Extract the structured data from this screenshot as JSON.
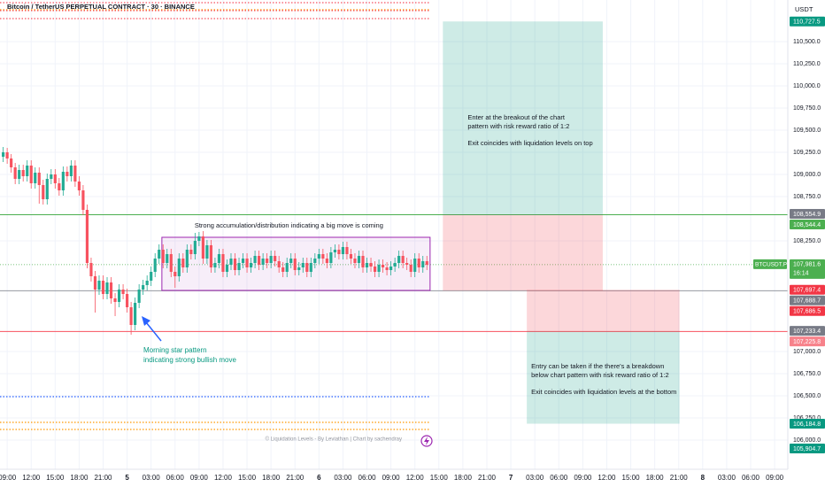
{
  "chart_data": {
    "type": "candlestick",
    "title": "Bitcoin / TetherUS PERPETUAL CONTRACT · 30 · BINANCE",
    "currency": "USDT",
    "up_color": "#22ab94",
    "down_color": "#f7525f",
    "grid": true,
    "xlim": [
      -0.8,
      196.3
    ],
    "ylim": [
      105670,
      110970
    ],
    "xticks": [
      {
        "value": 1,
        "label": "09:00"
      },
      {
        "value": 7,
        "label": "12:00"
      },
      {
        "value": 13,
        "label": "15:00"
      },
      {
        "value": 19,
        "label": "18:00"
      },
      {
        "value": 25,
        "label": "21:00"
      },
      {
        "value": 31,
        "label": "5"
      },
      {
        "value": 37,
        "label": "03:00"
      },
      {
        "value": 43,
        "label": "06:00"
      },
      {
        "value": 49,
        "label": "09:00"
      },
      {
        "value": 55,
        "label": "12:00"
      },
      {
        "value": 61,
        "label": "15:00"
      },
      {
        "value": 67,
        "label": "18:00"
      },
      {
        "value": 73,
        "label": "21:00"
      },
      {
        "value": 79,
        "label": "6"
      },
      {
        "value": 85,
        "label": "03:00"
      },
      {
        "value": 91,
        "label": "06:00"
      },
      {
        "value": 97,
        "label": "09:00"
      },
      {
        "value": 103,
        "label": "12:00"
      },
      {
        "value": 109,
        "label": "15:00"
      },
      {
        "value": 115,
        "label": "18:00"
      },
      {
        "value": 121,
        "label": "21:00"
      },
      {
        "value": 127,
        "label": "7"
      },
      {
        "value": 133,
        "label": "03:00"
      },
      {
        "value": 139,
        "label": "06:00"
      },
      {
        "value": 145,
        "label": "09:00"
      },
      {
        "value": 151,
        "label": "12:00"
      },
      {
        "value": 157,
        "label": "15:00"
      },
      {
        "value": 163,
        "label": "18:00"
      },
      {
        "value": 169,
        "label": "21:00"
      },
      {
        "value": 175,
        "label": "8"
      },
      {
        "value": 181,
        "label": "03:00"
      },
      {
        "value": 187,
        "label": "06:00"
      },
      {
        "value": 193,
        "label": "09:00"
      }
    ],
    "yticks": [
      {
        "value": 110500,
        "label": "110,500.0"
      },
      {
        "value": 110250,
        "label": "110,250.0"
      },
      {
        "value": 110000,
        "label": "110,000.0"
      },
      {
        "value": 109750,
        "label": "109,750.0"
      },
      {
        "value": 109500,
        "label": "109,500.0"
      },
      {
        "value": 109250,
        "label": "109,250.0"
      },
      {
        "value": 109000,
        "label": "109,000.0"
      },
      {
        "value": 108750,
        "label": "108,750.0"
      },
      {
        "value": 108250,
        "label": "108,250.0"
      },
      {
        "value": 107000,
        "label": "107,000.0"
      },
      {
        "value": 106750,
        "label": "106,750.0"
      },
      {
        "value": 106500,
        "label": "106,500.0"
      },
      {
        "value": 106250,
        "label": "106,250.0"
      },
      {
        "value": 106000,
        "label": "106,000.0"
      }
    ],
    "candles": [
      [
        109200,
        109310,
        109140,
        109250
      ],
      [
        109250,
        109300,
        109120,
        109180
      ],
      [
        109180,
        109230,
        109020,
        109080
      ],
      [
        109080,
        109130,
        108890,
        108950
      ],
      [
        108950,
        109110,
        108890,
        109050
      ],
      [
        109050,
        109110,
        108920,
        108980
      ],
      [
        108980,
        109160,
        108920,
        109100
      ],
      [
        109100,
        109160,
        108840,
        108900
      ],
      [
        108900,
        109080,
        108840,
        109020
      ],
      [
        109020,
        109080,
        108670,
        108880
      ],
      [
        108880,
        108940,
        108660,
        108720
      ],
      [
        108720,
        109010,
        108660,
        108950
      ],
      [
        108950,
        109060,
        108890,
        109000
      ],
      [
        109000,
        109060,
        108840,
        108900
      ],
      [
        108900,
        108960,
        108760,
        108820
      ],
      [
        108820,
        109090,
        108760,
        109030
      ],
      [
        109030,
        109090,
        108920,
        108980
      ],
      [
        108980,
        109160,
        108920,
        109100
      ],
      [
        109100,
        109160,
        108860,
        108920
      ],
      [
        108920,
        108980,
        108760,
        108820
      ],
      [
        108820,
        108880,
        108540,
        108600
      ],
      [
        108600,
        108660,
        107940,
        108000
      ],
      [
        108000,
        108060,
        107790,
        107850
      ],
      [
        107850,
        107910,
        107440,
        107700
      ],
      [
        107700,
        107860,
        107640,
        107800
      ],
      [
        107800,
        107860,
        107590,
        107650
      ],
      [
        107650,
        107840,
        107590,
        107780
      ],
      [
        107780,
        107840,
        107540,
        107600
      ],
      [
        107600,
        107660,
        107400,
        107560
      ],
      [
        107560,
        107760,
        107500,
        107700
      ],
      [
        107700,
        107760,
        107590,
        107650
      ],
      [
        107650,
        107710,
        107440,
        107500
      ],
      [
        107500,
        107560,
        107190,
        107300
      ],
      [
        107300,
        107610,
        107240,
        107550
      ],
      [
        107550,
        107760,
        107490,
        107700
      ],
      [
        107700,
        107810,
        107640,
        107750
      ],
      [
        107750,
        107860,
        107690,
        107800
      ],
      [
        107800,
        107960,
        107740,
        107900
      ],
      [
        107900,
        108110,
        107840,
        108050
      ],
      [
        108050,
        108210,
        107990,
        108150
      ],
      [
        108150,
        108210,
        107940,
        108000
      ],
      [
        108000,
        108160,
        107940,
        108100
      ],
      [
        108100,
        108160,
        107840,
        107900
      ],
      [
        107900,
        107960,
        107720,
        107850
      ],
      [
        107850,
        108110,
        107790,
        108050
      ],
      [
        108050,
        108110,
        107890,
        107950
      ],
      [
        107950,
        108210,
        107890,
        108150
      ],
      [
        108150,
        108210,
        108040,
        108100
      ],
      [
        108100,
        108340,
        108040,
        108250
      ],
      [
        108250,
        108350,
        108190,
        108300
      ],
      [
        108300,
        108360,
        107990,
        108050
      ],
      [
        108050,
        108260,
        107990,
        108200
      ],
      [
        108200,
        108260,
        107890,
        107950
      ],
      [
        107950,
        108060,
        107890,
        108000
      ],
      [
        108000,
        108160,
        107940,
        108100
      ],
      [
        108100,
        108160,
        107840,
        107900
      ],
      [
        107900,
        108040,
        107840,
        107980
      ],
      [
        107980,
        108110,
        107920,
        108050
      ],
      [
        108050,
        108110,
        107860,
        107920
      ],
      [
        107920,
        108060,
        107860,
        108000
      ],
      [
        108000,
        108110,
        107940,
        108050
      ],
      [
        108050,
        108110,
        107890,
        107950
      ],
      [
        107950,
        108060,
        107890,
        108000
      ],
      [
        108000,
        108140,
        107940,
        108080
      ],
      [
        108080,
        108140,
        107920,
        107980
      ],
      [
        107980,
        108110,
        107920,
        108050
      ],
      [
        108050,
        108110,
        107940,
        108000
      ],
      [
        108000,
        108140,
        107940,
        108080
      ],
      [
        108080,
        108140,
        107960,
        108020
      ],
      [
        108020,
        108080,
        107890,
        107950
      ],
      [
        107950,
        108010,
        107840,
        107900
      ],
      [
        107900,
        108060,
        107840,
        108000
      ],
      [
        108000,
        108110,
        107940,
        108050
      ],
      [
        108050,
        108110,
        107860,
        107920
      ],
      [
        107920,
        108010,
        107860,
        107950
      ],
      [
        107950,
        108060,
        107890,
        108000
      ],
      [
        108000,
        108060,
        107840,
        107900
      ],
      [
        107900,
        108060,
        107840,
        108000
      ],
      [
        108000,
        108110,
        107940,
        108050
      ],
      [
        108050,
        108160,
        107990,
        108100
      ],
      [
        108100,
        108160,
        107990,
        108050
      ],
      [
        108050,
        108110,
        107940,
        108000
      ],
      [
        108000,
        108180,
        107940,
        108120
      ],
      [
        108120,
        108210,
        108060,
        108150
      ],
      [
        108150,
        108210,
        108040,
        108100
      ],
      [
        108100,
        108240,
        108040,
        108180
      ],
      [
        108180,
        108240,
        108040,
        108100
      ],
      [
        108100,
        108160,
        107990,
        108050
      ],
      [
        108050,
        108110,
        107940,
        108000
      ],
      [
        108000,
        108140,
        107940,
        108080
      ],
      [
        108080,
        108140,
        107890,
        107950
      ],
      [
        107950,
        108060,
        107890,
        108000
      ],
      [
        108000,
        108060,
        107900,
        107960
      ],
      [
        107960,
        108020,
        107840,
        107900
      ],
      [
        107900,
        108040,
        107840,
        107980
      ],
      [
        107980,
        108040,
        107890,
        107950
      ],
      [
        107950,
        108010,
        107860,
        107920
      ],
      [
        107920,
        108020,
        107860,
        107960
      ],
      [
        107960,
        108060,
        107900,
        108000
      ],
      [
        108000,
        108140,
        107940,
        108080
      ],
      [
        108080,
        108140,
        107940,
        108000
      ],
      [
        108000,
        108060,
        107920,
        107980
      ],
      [
        107980,
        108040,
        107840,
        107900
      ],
      [
        107900,
        108110,
        107840,
        108050
      ],
      [
        108050,
        108110,
        107890,
        107950
      ],
      [
        107950,
        108080,
        107890,
        108020
      ],
      [
        108020,
        108080,
        107920,
        107980
      ]
    ],
    "lines": [
      {
        "value": 108544.4,
        "color": "#4caf50"
      },
      {
        "value": 107686.5,
        "color": "#9598a1"
      },
      {
        "value": 107225.8,
        "color": "#f7525f"
      }
    ],
    "liquidation_levels": [
      {
        "value": 110940,
        "color": "#f7525f"
      },
      {
        "value": 110860,
        "color": "#ff9800"
      },
      {
        "value": 110850,
        "color": "#f7525f"
      },
      {
        "value": 110760,
        "color": "#f7525f"
      },
      {
        "value": 106490,
        "color": "#2962ff"
      },
      {
        "value": 106200,
        "color": "#ff9800"
      },
      {
        "value": 106120,
        "color": "#ff9800"
      }
    ],
    "consolidation": {
      "x": [
        39.7,
        106.8
      ],
      "y": [
        107690,
        108290
      ],
      "color": "#9c27b0",
      "text": "Strong accumulation/distribution indicating a big move is coming"
    },
    "positions": [
      {
        "x": [
          110,
          150
        ],
        "entry": 108544.4,
        "target": 110727.5,
        "stop": 107686.5,
        "text": [
          "Enter at the breakout of the chart",
          "pattern with risk reward ratio of 1:2",
          "Exit coincides with liquidation levels on top"
        ]
      },
      {
        "x": [
          131,
          169.2
        ],
        "entry": 107225.8,
        "target": 106184.8,
        "stop": 107697.4,
        "text": [
          "Entry can be taken  if the there's a breakdown",
          "below chart pattern with risk reward ratio of 1:2",
          "Exit coincides with liquidation levels at the bottom"
        ]
      }
    ],
    "pattern_note": [
      "Morning star pattern",
      "indicating strong bullish move"
    ],
    "watermark": "© Liquidation Levels - By Leviathan | Chart by sachendray",
    "price_labels": [
      {
        "value": 110727.5,
        "label": "110,727.5",
        "color": "#089981"
      },
      {
        "value": 108554.9,
        "label": "108,554.9",
        "color": "#787b86"
      },
      {
        "value": 108544.4,
        "label": "108,544.4",
        "color": "#4caf50"
      },
      {
        "value": 107697.4,
        "label": "107,697.4",
        "color": "#f23645"
      },
      {
        "value": 107688.7,
        "label": "107,688.7",
        "color": "#787b86"
      },
      {
        "value": 107686.5,
        "label": "107,686.5",
        "color": "#f23645"
      },
      {
        "value": 107233.4,
        "label": "107,233.4",
        "color": "#787b86"
      },
      {
        "value": 107225.8,
        "label": "107,225.8",
        "color": "#f7828b"
      },
      {
        "value": 106184.8,
        "label": "106,184.8",
        "color": "#089981"
      },
      {
        "value": 105904.7,
        "label": "105,904.7",
        "color": "#089981"
      }
    ],
    "current_price": {
      "value": 107981.6,
      "label": "107,981.6",
      "time": "16:14",
      "symbol": "BTCUSDT.P",
      "color": "#4caf50"
    }
  }
}
